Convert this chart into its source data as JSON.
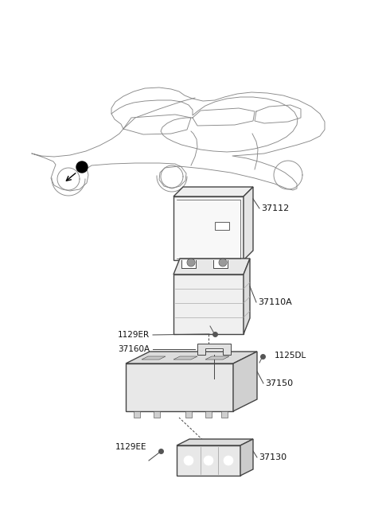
{
  "bg_color": "#ffffff",
  "line_color": "#444444",
  "label_color": "#111111",
  "parts": [
    {
      "id": "37112",
      "label": "37112"
    },
    {
      "id": "37110A",
      "label": "37110A"
    },
    {
      "id": "1129ER",
      "label": "1129ER"
    },
    {
      "id": "37160A",
      "label": "37160A"
    },
    {
      "id": "1125DL",
      "label": "1125DL"
    },
    {
      "id": "37150",
      "label": "37150"
    },
    {
      "id": "1129EE",
      "label": "1129EE"
    },
    {
      "id": "37130",
      "label": "37130"
    }
  ],
  "fig_width": 4.8,
  "fig_height": 6.55,
  "dpi": 100
}
